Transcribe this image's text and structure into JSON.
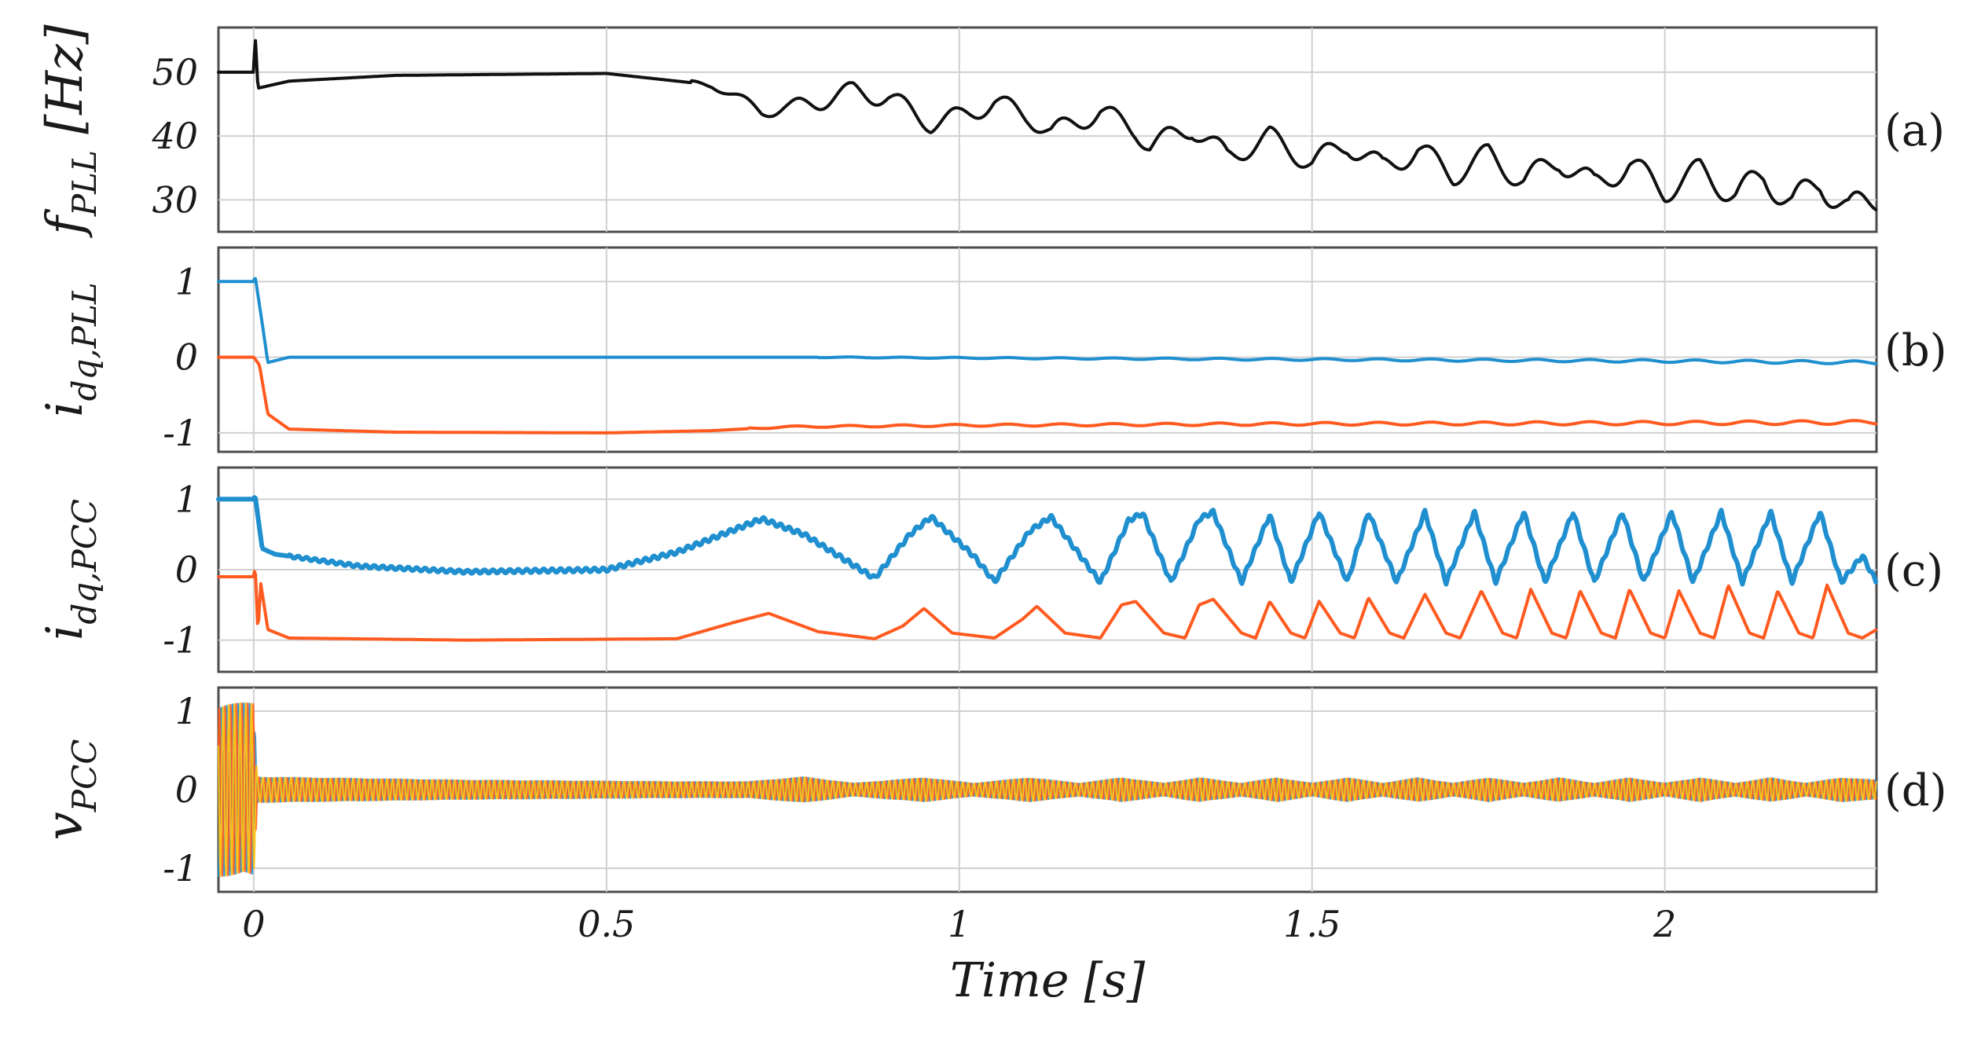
{
  "colors": {
    "black": "#111111",
    "blue": "#1f8fcf",
    "orange": "#ff5a1f",
    "yellow": "#ffc20e"
  },
  "chart_data": [
    {
      "type": "line",
      "panel_label": "(a)",
      "ylabel_main": "f",
      "ylabel_sub": "PLL",
      "ylabel_unit": " [Hz]",
      "ylim": [
        25,
        57
      ],
      "yticks": [
        {
          "v": 50,
          "label": "50"
        },
        {
          "v": 40,
          "label": "40"
        },
        {
          "v": 30,
          "label": "30"
        }
      ],
      "series": [
        {
          "name": "f_PLL",
          "color": "black",
          "points": [
            [
              -0.05,
              50
            ],
            [
              0.0,
              50
            ],
            [
              0.002,
              56
            ],
            [
              0.006,
              47.5
            ],
            [
              0.05,
              48.6
            ],
            [
              0.2,
              49.5
            ],
            [
              0.5,
              49.8
            ],
            [
              0.65,
              48
            ],
            [
              0.72,
              44
            ],
            [
              0.76,
              44.3
            ],
            [
              0.85,
              47
            ],
            [
              0.9,
              46
            ],
            [
              0.96,
              42
            ],
            [
              1.0,
              43
            ],
            [
              1.05,
              45.3
            ],
            [
              1.1,
              43
            ],
            [
              1.13,
              40.5
            ],
            [
              1.2,
              43.8
            ],
            [
              1.25,
              41
            ],
            [
              1.27,
              38.5
            ],
            [
              1.33,
              41.3
            ],
            [
              1.38,
              36.8
            ],
            [
              1.44,
              39.8
            ],
            [
              1.5,
              35.8
            ],
            [
              1.55,
              38.8
            ],
            [
              1.6,
              35
            ],
            [
              1.65,
              37.8
            ],
            [
              1.7,
              34
            ],
            [
              1.75,
              37
            ],
            [
              1.8,
              33
            ],
            [
              1.85,
              36.3
            ],
            [
              1.9,
              32.3
            ],
            [
              1.95,
              35.5
            ],
            [
              2.0,
              31.5
            ],
            [
              2.05,
              34.5
            ],
            [
              2.1,
              30.8
            ],
            [
              2.14,
              33.6
            ],
            [
              2.18,
              29.5
            ],
            [
              2.22,
              32.8
            ],
            [
              2.26,
              28.3
            ],
            [
              2.3,
              30.5
            ]
          ],
          "envelope": [
            [
              0.62,
              0.3
            ],
            [
              0.8,
              1.5
            ],
            [
              1.2,
              1.6
            ],
            [
              1.6,
              1.8
            ],
            [
              2.0,
              2.0
            ],
            [
              2.3,
              2.4
            ]
          ],
          "ripple_period": 0.075
        }
      ]
    },
    {
      "type": "line",
      "panel_label": "(b)",
      "ylabel_main": "i",
      "ylabel_sub": "dq,PLL",
      "ylabel_unit": "",
      "ylim": [
        -1.25,
        1.45
      ],
      "yticks": [
        {
          "v": 1,
          "label": "1"
        },
        {
          "v": 0,
          "label": "0"
        },
        {
          "v": -1,
          "label": "-1"
        }
      ],
      "series": [
        {
          "name": "i_d,PLL",
          "color": "blue",
          "points": [
            [
              -0.05,
              1
            ],
            [
              0.0,
              1
            ],
            [
              0.002,
              1.07
            ],
            [
              0.012,
              0.45
            ],
            [
              0.02,
              -0.07
            ],
            [
              0.05,
              0.0
            ],
            [
              0.5,
              0.0
            ],
            [
              0.8,
              0.0
            ],
            [
              1.5,
              -0.03
            ],
            [
              2.0,
              -0.05
            ],
            [
              2.3,
              -0.07
            ]
          ],
          "envelope": [
            [
              0.8,
              0.005
            ],
            [
              2.3,
              0.02
            ]
          ],
          "ripple_period": 0.075
        },
        {
          "name": "i_q,PLL",
          "color": "orange",
          "points": [
            [
              -0.05,
              0
            ],
            [
              0.0,
              0
            ],
            [
              0.008,
              -0.1
            ],
            [
              0.02,
              -0.75
            ],
            [
              0.05,
              -0.95
            ],
            [
              0.2,
              -0.99
            ],
            [
              0.5,
              -1.0
            ],
            [
              0.65,
              -0.97
            ],
            [
              0.75,
              -0.92
            ],
            [
              1.0,
              -0.9
            ],
            [
              1.5,
              -0.88
            ],
            [
              2.0,
              -0.87
            ],
            [
              2.3,
              -0.86
            ]
          ],
          "envelope": [
            [
              0.7,
              0.01
            ],
            [
              2.3,
              0.025
            ]
          ],
          "ripple_period": 0.075
        }
      ]
    },
    {
      "type": "line",
      "panel_label": "(c)",
      "ylabel_main": "i",
      "ylabel_sub": "dq,PCC",
      "ylabel_unit": "",
      "ylim": [
        -1.45,
        1.45
      ],
      "yticks": [
        {
          "v": 1,
          "label": "1"
        },
        {
          "v": 0,
          "label": "0"
        },
        {
          "v": -1,
          "label": "-1"
        }
      ],
      "series": [
        {
          "name": "i_d,PCC",
          "color": "blue",
          "points": [
            [
              -0.05,
              1
            ],
            [
              0.0,
              1
            ],
            [
              0.002,
              1.05
            ],
            [
              0.012,
              0.3
            ],
            [
              0.03,
              0.22
            ],
            [
              0.15,
              0.05
            ],
            [
              0.3,
              -0.03
            ],
            [
              0.5,
              0.0
            ],
            [
              0.6,
              0.25
            ],
            [
              0.72,
              0.72
            ],
            [
              0.78,
              0.5
            ],
            [
              0.88,
              -0.12
            ],
            [
              0.93,
              0.5
            ],
            [
              0.96,
              0.75
            ],
            [
              1.02,
              0.2
            ],
            [
              1.05,
              -0.17
            ],
            [
              1.1,
              0.55
            ],
            [
              1.13,
              0.75
            ],
            [
              1.2,
              -0.18
            ],
            [
              1.24,
              0.7
            ],
            [
              1.26,
              0.8
            ],
            [
              1.3,
              -0.18
            ],
            [
              1.34,
              0.72
            ],
            [
              1.36,
              0.82
            ],
            [
              1.4,
              -0.18
            ],
            [
              1.44,
              0.78
            ],
            [
              1.47,
              -0.18
            ],
            [
              1.51,
              0.82
            ],
            [
              1.55,
              -0.18
            ],
            [
              1.58,
              0.82
            ],
            [
              1.62,
              -0.18
            ],
            [
              1.66,
              0.82
            ],
            [
              1.69,
              -0.18
            ],
            [
              1.73,
              0.82
            ],
            [
              1.76,
              -0.18
            ],
            [
              1.8,
              0.82
            ],
            [
              1.83,
              -0.18
            ],
            [
              1.87,
              0.82
            ],
            [
              1.9,
              -0.18
            ],
            [
              1.94,
              0.82
            ],
            [
              1.97,
              -0.18
            ],
            [
              2.01,
              0.82
            ],
            [
              2.04,
              -0.18
            ],
            [
              2.08,
              0.82
            ],
            [
              2.11,
              -0.18
            ],
            [
              2.15,
              0.82
            ],
            [
              2.18,
              -0.18
            ],
            [
              2.22,
              0.82
            ],
            [
              2.25,
              -0.18
            ],
            [
              2.28,
              0.2
            ],
            [
              2.3,
              -0.18
            ]
          ],
          "envelope": [
            [
              0.05,
              0.02
            ],
            [
              0.7,
              0.03
            ]
          ],
          "ripple_period": 0.012
        },
        {
          "name": "i_q,PCC",
          "color": "orange",
          "points": [
            [
              -0.05,
              -0.1
            ],
            [
              0.0,
              -0.1
            ],
            [
              0.002,
              0.05
            ],
            [
              0.006,
              -0.88
            ],
            [
              0.01,
              -0.2
            ],
            [
              0.02,
              -0.85
            ],
            [
              0.05,
              -0.97
            ],
            [
              0.3,
              -1.0
            ],
            [
              0.6,
              -0.98
            ],
            [
              0.68,
              -0.75
            ],
            [
              0.73,
              -0.62
            ],
            [
              0.8,
              -0.88
            ],
            [
              0.88,
              -0.98
            ],
            [
              0.92,
              -0.8
            ],
            [
              0.95,
              -0.55
            ],
            [
              0.99,
              -0.9
            ],
            [
              1.05,
              -0.97
            ],
            [
              1.09,
              -0.7
            ],
            [
              1.11,
              -0.52
            ],
            [
              1.15,
              -0.9
            ],
            [
              1.2,
              -0.97
            ],
            [
              1.23,
              -0.5
            ],
            [
              1.25,
              -0.45
            ],
            [
              1.29,
              -0.9
            ],
            [
              1.32,
              -0.97
            ],
            [
              1.34,
              -0.5
            ],
            [
              1.36,
              -0.42
            ],
            [
              1.4,
              -0.9
            ],
            [
              1.42,
              -0.97
            ],
            [
              1.44,
              -0.45
            ],
            [
              1.47,
              -0.9
            ],
            [
              1.49,
              -0.97
            ],
            [
              1.51,
              -0.45
            ],
            [
              1.54,
              -0.9
            ],
            [
              1.56,
              -0.97
            ],
            [
              1.58,
              -0.4
            ],
            [
              1.61,
              -0.9
            ],
            [
              1.63,
              -0.97
            ],
            [
              1.66,
              -0.35
            ],
            [
              1.69,
              -0.9
            ],
            [
              1.71,
              -0.97
            ],
            [
              1.74,
              -0.3
            ],
            [
              1.77,
              -0.9
            ],
            [
              1.79,
              -0.97
            ],
            [
              1.81,
              -0.28
            ],
            [
              1.84,
              -0.9
            ],
            [
              1.86,
              -0.97
            ],
            [
              1.88,
              -0.3
            ],
            [
              1.91,
              -0.9
            ],
            [
              1.93,
              -0.97
            ],
            [
              1.95,
              -0.28
            ],
            [
              1.98,
              -0.9
            ],
            [
              2.0,
              -0.97
            ],
            [
              2.02,
              -0.3
            ],
            [
              2.05,
              -0.9
            ],
            [
              2.07,
              -0.97
            ],
            [
              2.09,
              -0.22
            ],
            [
              2.12,
              -0.9
            ],
            [
              2.14,
              -0.97
            ],
            [
              2.16,
              -0.3
            ],
            [
              2.19,
              -0.9
            ],
            [
              2.21,
              -0.97
            ],
            [
              2.23,
              -0.22
            ],
            [
              2.26,
              -0.9
            ],
            [
              2.28,
              -0.97
            ],
            [
              2.3,
              -0.85
            ]
          ]
        }
      ]
    },
    {
      "type": "line",
      "panel_label": "(d)",
      "ylabel_main": "v",
      "ylabel_sub": "PCC",
      "ylabel_unit": "",
      "ylim": [
        -1.3,
        1.3
      ],
      "yticks": [
        {
          "v": 1,
          "label": "1"
        },
        {
          "v": 0,
          "label": "0"
        },
        {
          "v": -1,
          "label": "-1"
        }
      ],
      "series": [
        {
          "name": "v_PCC phase a",
          "color": "blue",
          "carrier_period": 0.008,
          "phase_shift": 0.0
        },
        {
          "name": "v_PCC phase b",
          "color": "orange",
          "carrier_period": 0.008,
          "phase_shift": 2.094
        },
        {
          "name": "v_PCC phase c",
          "color": "yellow",
          "carrier_period": 0.008,
          "phase_shift": 4.189
        }
      ],
      "amplitude_envelope": [
        [
          -0.05,
          1.1
        ],
        [
          0.0,
          1.1
        ],
        [
          0.005,
          0.16
        ],
        [
          0.3,
          0.12
        ],
        [
          0.6,
          0.1
        ],
        [
          0.7,
          0.1
        ],
        [
          0.78,
          0.16
        ],
        [
          0.85,
          0.08
        ],
        [
          0.95,
          0.15
        ],
        [
          1.02,
          0.08
        ],
        [
          1.1,
          0.15
        ],
        [
          1.17,
          0.08
        ],
        [
          1.23,
          0.15
        ],
        [
          1.29,
          0.08
        ],
        [
          1.34,
          0.15
        ],
        [
          1.4,
          0.08
        ],
        [
          1.45,
          0.15
        ],
        [
          1.5,
          0.08
        ],
        [
          1.55,
          0.15
        ],
        [
          1.6,
          0.08
        ],
        [
          1.65,
          0.15
        ],
        [
          1.7,
          0.08
        ],
        [
          1.75,
          0.15
        ],
        [
          1.8,
          0.08
        ],
        [
          1.85,
          0.15
        ],
        [
          1.9,
          0.08
        ],
        [
          1.95,
          0.15
        ],
        [
          2.0,
          0.08
        ],
        [
          2.05,
          0.15
        ],
        [
          2.1,
          0.08
        ],
        [
          2.15,
          0.15
        ],
        [
          2.2,
          0.08
        ],
        [
          2.25,
          0.15
        ],
        [
          2.3,
          0.12
        ]
      ]
    }
  ],
  "xaxis": {
    "xlim": [
      -0.05,
      2.3
    ],
    "ticks": [
      {
        "v": 0,
        "label": "0"
      },
      {
        "v": 0.5,
        "label": "0.5"
      },
      {
        "v": 1,
        "label": "1"
      },
      {
        "v": 1.5,
        "label": "1.5"
      },
      {
        "v": 2,
        "label": "2"
      }
    ],
    "xlabel": "Time [s]"
  }
}
